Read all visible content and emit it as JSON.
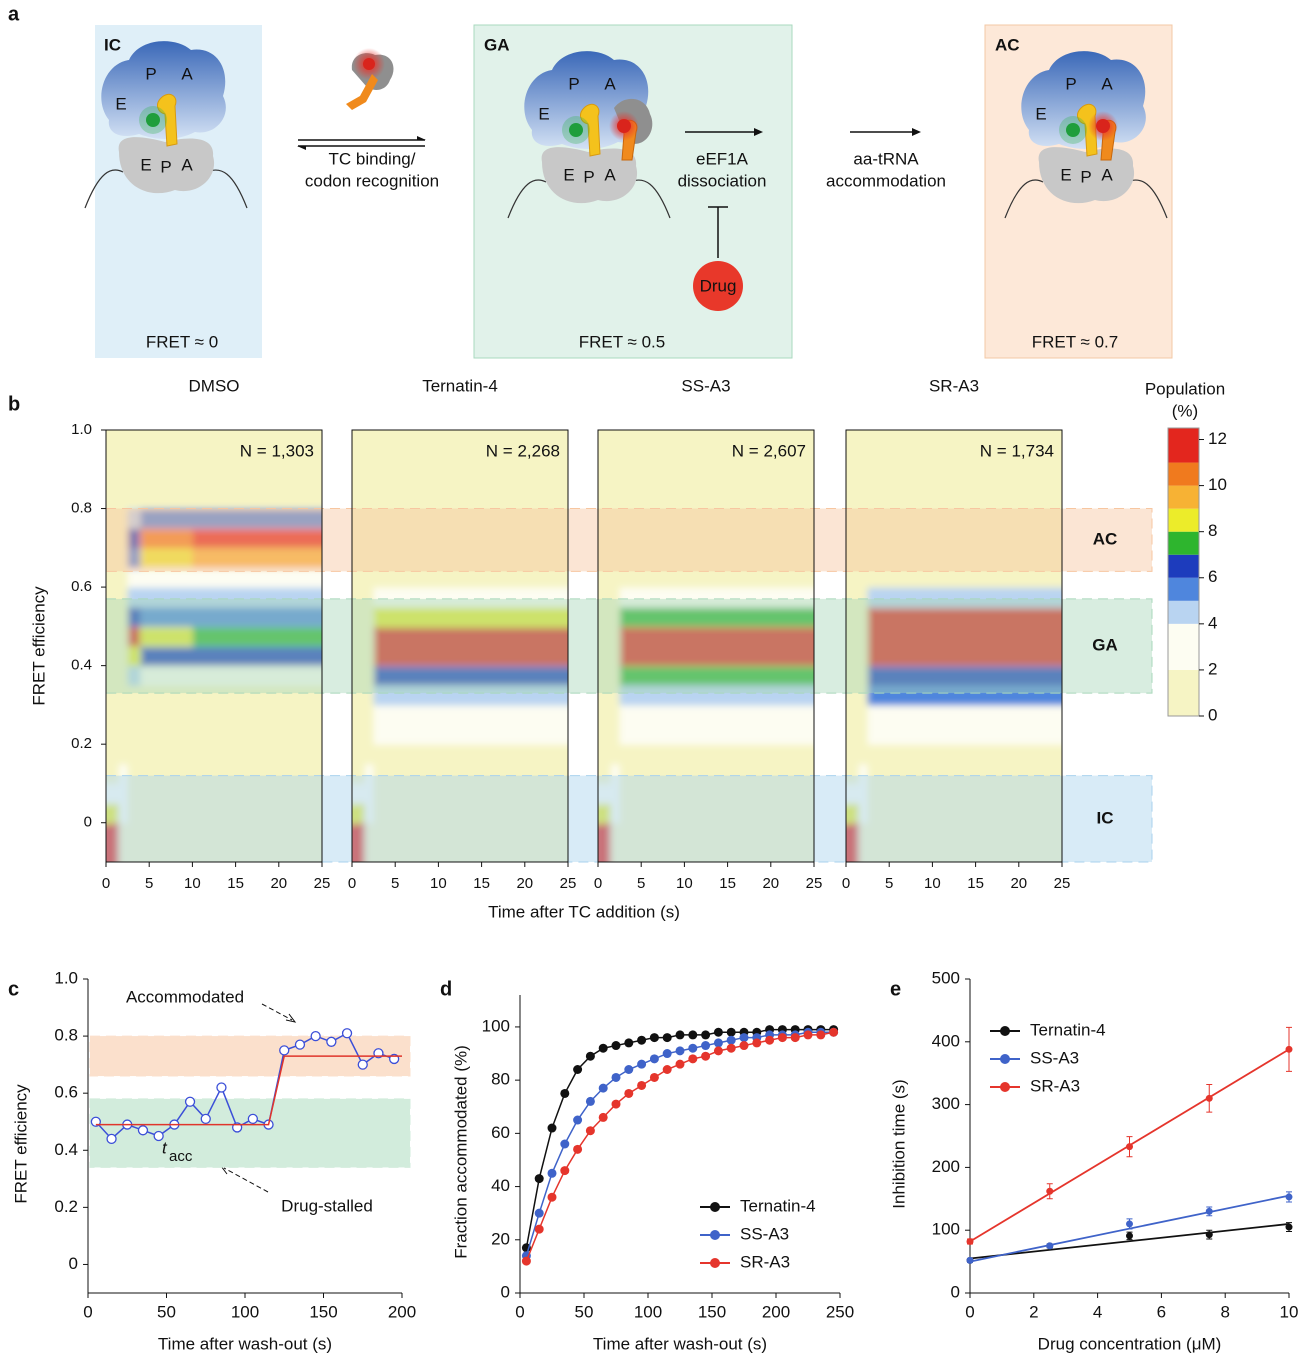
{
  "diagram": {
    "label": "a",
    "states": [
      {
        "name": "IC",
        "fret": "FRET ≈ 0"
      },
      {
        "name": "GA",
        "fret": "FRET ≈ 0.5"
      },
      {
        "name": "AC",
        "fret": "FRET ≈ 0.7"
      }
    ],
    "sites": [
      "E",
      "P",
      "A"
    ],
    "steps": [
      [
        "TC binding/",
        "codon recognition"
      ],
      [
        "eEF1A",
        "dissociation"
      ],
      [
        "aa-tRNA",
        "accommodation"
      ]
    ],
    "inhibitor": "Drug"
  },
  "chart_data": [
    {
      "type": "heatmap",
      "label": "b",
      "ylabel": "FRET efficiency",
      "xlabel": "Time after TC addition (s)",
      "xlim": [
        0,
        25
      ],
      "xticks": [
        0,
        5,
        10,
        15,
        20,
        25
      ],
      "ylim": [
        -0.1,
        1.0
      ],
      "yticks": [
        0,
        0.2,
        0.4,
        0.6,
        0.8,
        {
          "value": 1,
          "label": "1.0"
        }
      ],
      "x_edges": [
        0,
        1.5,
        2.5,
        4,
        10,
        25
      ],
      "y_edges": [
        -0.1,
        -0.05,
        0,
        0.05,
        0.1,
        0.15,
        0.2,
        0.25,
        0.3,
        0.35,
        0.4,
        0.45,
        0.5,
        0.55,
        0.6,
        0.65,
        0.7,
        0.75,
        0.8,
        0.85,
        0.9,
        0.95,
        1.0
      ],
      "panels": [
        {
          "title": "DMSO",
          "n_label": "N = 1,303",
          "z": [
            [
              12,
              1,
              0,
              0,
              0
            ],
            [
              12,
              1,
              0,
              0,
              0
            ],
            [
              8,
              2,
              0,
              0,
              0
            ],
            [
              3,
              3,
              0,
              0,
              0
            ],
            [
              0,
              2,
              0,
              0,
              0
            ],
            [
              0,
              1,
              0,
              0,
              0
            ],
            [
              0,
              1,
              0,
              0,
              0
            ],
            [
              0,
              1,
              1,
              1,
              1
            ],
            [
              0,
              1,
              1,
              1,
              1
            ],
            [
              0,
              1,
              4,
              3,
              3
            ],
            [
              0,
              1,
              8,
              6,
              6
            ],
            [
              0,
              1,
              11.5,
              8,
              7
            ],
            [
              0,
              1,
              6,
              5,
              5
            ],
            [
              0,
              1,
              4,
              4,
              4
            ],
            [
              0,
              1,
              3,
              3,
              3
            ],
            [
              0,
              1,
              5,
              8,
              9
            ],
            [
              0,
              0,
              6,
              10,
              12
            ],
            [
              0,
              0,
              4,
              5,
              5
            ],
            [
              0,
              0,
              0,
              0,
              0
            ],
            [
              0,
              0,
              0,
              0,
              0
            ],
            [
              0,
              0,
              0,
              0,
              0
            ],
            [
              0,
              0,
              0,
              0,
              0
            ]
          ]
        },
        {
          "title": "Ternatin-4",
          "n_label": "N = 2,268",
          "z": [
            [
              12,
              1,
              0,
              0,
              0
            ],
            [
              12,
              1,
              0,
              0,
              0
            ],
            [
              8,
              2,
              0,
              0,
              0
            ],
            [
              3,
              3,
              0,
              0,
              0
            ],
            [
              0,
              2,
              0,
              0,
              0
            ],
            [
              0,
              1,
              1,
              1,
              1
            ],
            [
              0,
              1,
              2,
              2,
              2
            ],
            [
              0,
              1,
              2,
              2,
              2
            ],
            [
              0,
              1,
              4.5,
              4.5,
              4.5
            ],
            [
              0,
              1,
              6.5,
              6.5,
              6.5
            ],
            [
              0,
              1,
              12,
              12,
              12
            ],
            [
              0,
              1,
              12,
              12,
              12
            ],
            [
              0,
              1,
              8,
              8,
              8
            ],
            [
              0,
              1,
              3,
              3,
              3
            ],
            [
              0,
              0,
              0,
              0,
              0
            ],
            [
              0,
              0,
              0,
              0,
              0
            ],
            [
              0,
              0,
              0,
              0,
              0
            ],
            [
              0,
              0,
              0,
              0,
              0
            ],
            [
              0,
              0,
              0,
              0,
              0
            ],
            [
              0,
              0,
              0,
              0,
              0
            ],
            [
              0,
              0,
              0,
              0,
              0
            ],
            [
              0,
              0,
              0,
              0,
              0
            ]
          ]
        },
        {
          "title": "SS-A3",
          "n_label": "N = 2,607",
          "z": [
            [
              12,
              1,
              0,
              0,
              0
            ],
            [
              12,
              1,
              0,
              0,
              0
            ],
            [
              8,
              2,
              0,
              0,
              0
            ],
            [
              3,
              3,
              0,
              0,
              0
            ],
            [
              0,
              2,
              0,
              0,
              0
            ],
            [
              0,
              1,
              1,
              1,
              1
            ],
            [
              0,
              1,
              2,
              2,
              2
            ],
            [
              0,
              1,
              2,
              2,
              2
            ],
            [
              0,
              1,
              4.5,
              4.5,
              4.5
            ],
            [
              0,
              1,
              7.5,
              7,
              7
            ],
            [
              0,
              1,
              12,
              12,
              12
            ],
            [
              0,
              1,
              12,
              12,
              12
            ],
            [
              0,
              1,
              7.5,
              7.5,
              7.5
            ],
            [
              0,
              1,
              3,
              3,
              3
            ],
            [
              0,
              0,
              0,
              0,
              0
            ],
            [
              0,
              0,
              0,
              0,
              0
            ],
            [
              0,
              0,
              0,
              0,
              0
            ],
            [
              0,
              0,
              0,
              0,
              0
            ],
            [
              0,
              0,
              0,
              0,
              0
            ],
            [
              0,
              0,
              0,
              0,
              0
            ],
            [
              0,
              0,
              0,
              0,
              0
            ],
            [
              0,
              0,
              0,
              0,
              0
            ]
          ]
        },
        {
          "title": "SR-A3",
          "n_label": "N = 1,734",
          "z": [
            [
              12,
              1,
              0,
              0,
              0
            ],
            [
              12,
              1,
              0,
              0,
              0
            ],
            [
              8,
              2,
              0,
              0,
              0
            ],
            [
              3,
              3,
              0,
              0,
              0
            ],
            [
              0,
              2,
              0,
              0,
              0
            ],
            [
              0,
              1,
              1,
              1,
              1
            ],
            [
              0,
              1,
              2,
              2,
              2
            ],
            [
              0,
              1,
              2,
              2,
              2
            ],
            [
              0,
              1,
              5,
              5,
              5
            ],
            [
              0,
              1,
              6.5,
              6.5,
              6.5
            ],
            [
              0,
              1,
              12,
              12,
              12
            ],
            [
              0,
              1,
              12,
              12,
              12
            ],
            [
              0,
              1,
              11.5,
              11.5,
              11.5
            ],
            [
              0,
              1,
              4.5,
              4.5,
              4.5
            ],
            [
              0,
              0,
              0,
              0,
              0
            ],
            [
              0,
              0,
              0,
              0,
              0
            ],
            [
              0,
              0,
              0,
              0,
              0
            ],
            [
              0,
              0,
              0,
              0,
              0
            ],
            [
              0,
              0,
              0,
              0,
              0
            ],
            [
              0,
              0,
              0,
              0,
              0
            ],
            [
              0,
              0,
              0,
              0,
              0
            ],
            [
              0,
              0,
              0,
              0,
              0
            ]
          ]
        }
      ],
      "states": [
        {
          "name": "AC",
          "range": [
            0.64,
            0.8
          ],
          "color": "#f7c6a0"
        },
        {
          "name": "GA",
          "range": [
            0.33,
            0.57
          ],
          "color": "#a9d8bb"
        },
        {
          "name": "IC",
          "range": [
            -0.1,
            0.12
          ],
          "color": "#a9d2ee"
        }
      ],
      "colorbar": {
        "title": [
          "Population",
          "(%)"
        ],
        "lim": [
          0,
          12.5
        ],
        "ticks": [
          0,
          2,
          4,
          6,
          8,
          10,
          12
        ],
        "levels": [
          0,
          2,
          4,
          5,
          6,
          7,
          8,
          9,
          10,
          11,
          12.5
        ],
        "colors": [
          "#f6f4c4",
          "#fdfdf2",
          "#b9d4f1",
          "#4f86dd",
          "#1d3cbd",
          "#2eb52e",
          "#ecec2a",
          "#f7b234",
          "#f07a1e",
          "#e3261e"
        ]
      }
    },
    {
      "type": "line",
      "label": "c",
      "ylabel": "FRET efficiency",
      "xlabel": "Time after wash-out (s)",
      "xlim": [
        0,
        200
      ],
      "xticks": [
        0,
        50,
        100,
        150,
        200
      ],
      "ylim": [
        -0.1,
        1.0
      ],
      "yticks": [
        0,
        0.2,
        0.4,
        0.6,
        0.8,
        {
          "value": 1,
          "label": "1.0"
        }
      ],
      "bands": [
        {
          "range": [
            0.34,
            0.58
          ],
          "color": "#d2ecdc"
        },
        {
          "range": [
            0.66,
            0.8
          ],
          "color": "#fbe0cc"
        }
      ],
      "annotations": [
        "Accommodated",
        "Drug-stalled"
      ],
      "dwell_label": {
        "symbol": "t",
        "subscript": "acc"
      },
      "series": [
        {
          "color": "#3b4fd8",
          "marker": "open",
          "x": [
            5,
            15,
            25,
            35,
            45,
            55,
            65,
            75,
            85,
            95,
            105,
            115,
            125,
            135,
            145,
            155,
            165,
            175,
            185,
            195
          ],
          "values": [
            0.5,
            0.44,
            0.49,
            0.47,
            0.45,
            0.49,
            0.57,
            0.51,
            0.62,
            0.48,
            0.51,
            0.49,
            0.75,
            0.77,
            0.8,
            0.78,
            0.81,
            0.7,
            0.74,
            0.72
          ]
        },
        {
          "color": "#e0352b",
          "x": [
            5,
            115,
            125,
            200
          ],
          "values": [
            0.49,
            0.49,
            0.73,
            0.73
          ]
        }
      ]
    },
    {
      "type": "scatter",
      "label": "d",
      "ylabel": "Fraction accommodated (%)",
      "xlabel": "Time after wash-out (s)",
      "xlim": [
        0,
        250
      ],
      "xticks": [
        0,
        50,
        100,
        150,
        200,
        250
      ],
      "ylim": [
        0,
        112
      ],
      "yticks": [
        0,
        20,
        40,
        60,
        80,
        100
      ],
      "legend": "lower right",
      "x": [
        5,
        15,
        25,
        35,
        45,
        55,
        65,
        75,
        85,
        95,
        105,
        115,
        125,
        135,
        145,
        155,
        165,
        175,
        185,
        195,
        205,
        215,
        225,
        235,
        245
      ],
      "series": [
        {
          "name": "Ternatin-4",
          "color": "#111111",
          "values": [
            17,
            43,
            62,
            75,
            84,
            89,
            92,
            93,
            94,
            95,
            96,
            96,
            97,
            97,
            97,
            98,
            98,
            98,
            98,
            99,
            99,
            99,
            99,
            99,
            99
          ]
        },
        {
          "name": "SS-A3",
          "color": "#3f63c9",
          "values": [
            14,
            30,
            45,
            56,
            65,
            72,
            77,
            81,
            84,
            86,
            88,
            90,
            91,
            92,
            93,
            94,
            95,
            96,
            96,
            97,
            97,
            97,
            98,
            98,
            98
          ]
        },
        {
          "name": "SR-A3",
          "color": "#e5352c",
          "values": [
            12,
            24,
            36,
            46,
            54,
            61,
            66,
            71,
            75,
            78,
            81,
            84,
            86,
            88,
            89,
            91,
            92,
            93,
            94,
            95,
            96,
            96,
            97,
            97,
            98
          ]
        }
      ]
    },
    {
      "type": "scatter",
      "label": "e",
      "ylabel": "Inhibition time (s)",
      "xlabel": "Drug concentration (μM)",
      "xlim": [
        0,
        10
      ],
      "xticks": [
        0,
        2,
        4,
        6,
        8,
        10
      ],
      "ylim": [
        0,
        500
      ],
      "yticks": [
        0,
        100,
        200,
        300,
        400,
        500
      ],
      "legend": "upper left",
      "x": [
        0,
        2.5,
        5,
        7.5,
        10
      ],
      "fit_x": [
        0,
        10
      ],
      "series": [
        {
          "name": "Ternatin-4",
          "color": "#111111",
          "values": [
            52,
            75,
            91,
            93,
            105
          ],
          "errors": [
            3,
            3,
            6,
            7,
            7
          ],
          "fit": [
            55,
            110
          ]
        },
        {
          "name": "SS-A3",
          "color": "#3f63c9",
          "values": [
            52,
            75,
            110,
            130,
            153
          ],
          "errors": [
            3,
            3,
            8,
            7,
            8
          ],
          "fit": [
            50,
            155
          ]
        },
        {
          "name": "SR-A3",
          "color": "#e5352c",
          "values": [
            82,
            162,
            233,
            310,
            388
          ],
          "errors": [
            4,
            12,
            16,
            22,
            35
          ],
          "fit": [
            82,
            388
          ]
        }
      ]
    }
  ]
}
